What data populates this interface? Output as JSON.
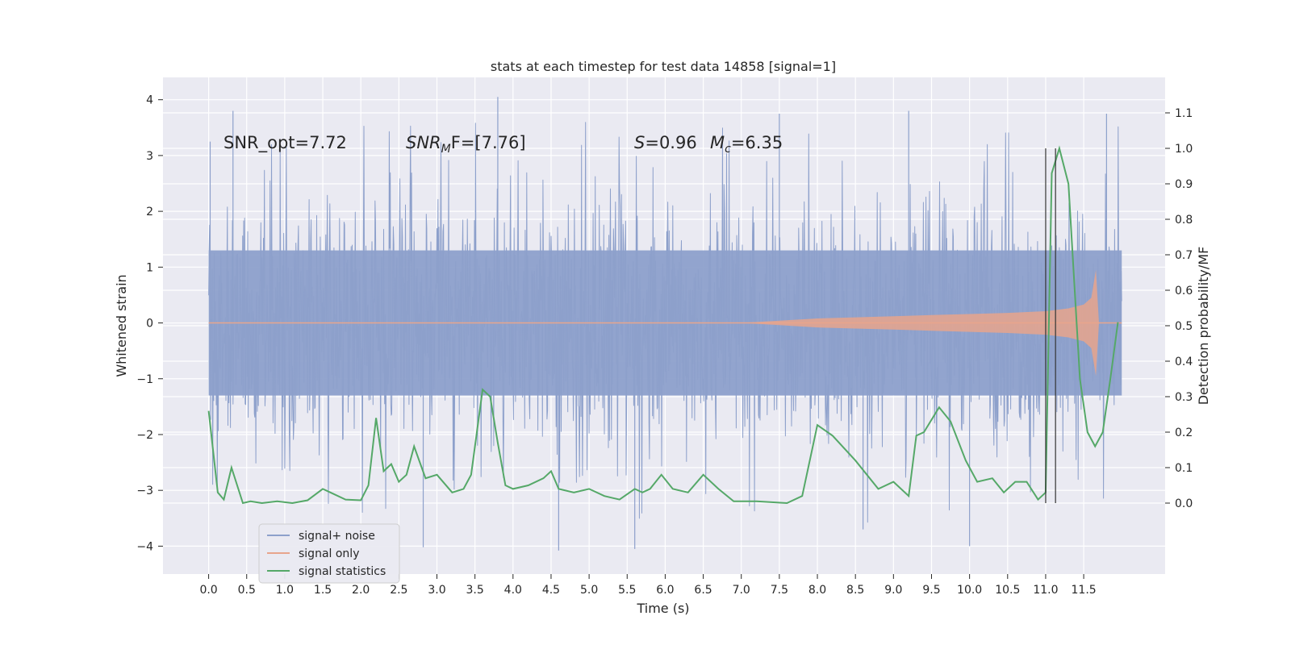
{
  "chart_data": {
    "type": "line",
    "title": "stats at each timestep for test data 14858 [signal=1]",
    "xlabel": "Time (s)",
    "ylabel_left": "Whitened strain",
    "ylabel_right": "Detection probability/MF",
    "xlim": [
      -0.6,
      12.57
    ],
    "ylim_left": [
      -4.5,
      4.4
    ],
    "ylim_right": [
      -0.2,
      1.2
    ],
    "grid": true,
    "x_ticks": [
      0.0,
      0.5,
      1.0,
      1.5,
      2.0,
      2.5,
      3.0,
      3.5,
      4.0,
      4.5,
      5.0,
      5.5,
      6.0,
      6.5,
      7.0,
      7.5,
      8.0,
      8.5,
      9.0,
      9.5,
      10.0,
      10.5,
      11.0,
      11.5
    ],
    "x_tick_labels": [
      "0.0",
      "0.5",
      "1.0",
      "1.5",
      "2.0",
      "2.5",
      "3.0",
      "3.5",
      "4.0",
      "4.5",
      "5.0",
      "5.5",
      "6.0",
      "6.5",
      "7.0",
      "7.5",
      "8.0",
      "8.5",
      "9.0",
      "9.5",
      "10.0",
      "10.5",
      "11.0",
      "11.5"
    ],
    "y_left_ticks": [
      -4,
      -3,
      -2,
      -1,
      0,
      1,
      2,
      3,
      4
    ],
    "y_left_tick_labels": [
      "−4",
      "−3",
      "−2",
      "−1",
      "0",
      "1",
      "2",
      "3",
      "4"
    ],
    "y_right_ticks": [
      0.0,
      0.1,
      0.2,
      0.3,
      0.4,
      0.5,
      0.6,
      0.7,
      0.8,
      0.9,
      1.0,
      1.1
    ],
    "y_right_tick_labels": [
      "0.0",
      "0.1",
      "0.2",
      "0.3",
      "0.4",
      "0.5",
      "0.6",
      "0.7",
      "0.8",
      "0.9",
      "1.0",
      "1.1"
    ],
    "annotations": {
      "snr_opt": "SNR_opt=7.72",
      "snr_mf_main": "SNR",
      "snr_mf_sub": "M",
      "snr_mf_rest": "F=[7.76]",
      "s_main": "S",
      "s_rest": "=0.96",
      "mc_main": "M",
      "mc_sub": "c",
      "mc_rest": "=6.35"
    },
    "vertical_lines_x": [
      11.0,
      11.13
    ],
    "legend": {
      "placement": "lower-left",
      "entries": [
        {
          "label": "signal+ noise",
          "color": "#8da0cb"
        },
        {
          "label": "signal only",
          "color": "#e8a58c"
        },
        {
          "label": "signal statistics",
          "color": "#55a868"
        }
      ]
    },
    "series": [
      {
        "name": "signal+ noise",
        "axis": "left",
        "color": "#8da0cb",
        "x_range": [
          0.0,
          12.0
        ],
        "envelope_upper": 1.3,
        "envelope_lower": -1.3,
        "max": 4.05,
        "min": -4.08,
        "spikes": [
          {
            "x": 0.02,
            "y": 3.25
          },
          {
            "x": 0.32,
            "y": 3.8
          },
          {
            "x": 3.8,
            "y": 4.05
          },
          {
            "x": 2.82,
            "y": -4.02
          },
          {
            "x": 4.6,
            "y": -4.08
          },
          {
            "x": 5.6,
            "y": -4.05
          },
          {
            "x": 10.0,
            "y": -4.0
          },
          {
            "x": 8.6,
            "y": -3.7
          },
          {
            "x": 9.2,
            "y": 3.8
          },
          {
            "x": 7.5,
            "y": 3.75
          },
          {
            "x": 11.8,
            "y": 3.75
          }
        ]
      },
      {
        "name": "signal only",
        "axis": "left",
        "color": "#e8a58c",
        "x": [
          0.0,
          7.0,
          7.5,
          8.0,
          8.5,
          9.0,
          9.5,
          10.0,
          10.5,
          11.0,
          11.3,
          11.5,
          11.6,
          11.66,
          11.7,
          12.0
        ],
        "amplitude": [
          0.0,
          0.0,
          0.04,
          0.08,
          0.1,
          0.12,
          0.14,
          0.16,
          0.18,
          0.21,
          0.26,
          0.33,
          0.45,
          0.95,
          0.0,
          0.0
        ]
      },
      {
        "name": "signal statistics",
        "axis": "right",
        "color": "#55a868",
        "x": [
          0.0,
          0.12,
          0.2,
          0.3,
          0.45,
          0.55,
          0.7,
          0.9,
          1.1,
          1.3,
          1.5,
          1.6,
          1.8,
          2.0,
          2.1,
          2.2,
          2.3,
          2.4,
          2.5,
          2.6,
          2.7,
          2.85,
          3.0,
          3.2,
          3.35,
          3.45,
          3.6,
          3.7,
          3.8,
          3.9,
          4.0,
          4.2,
          4.4,
          4.5,
          4.6,
          4.8,
          5.0,
          5.2,
          5.4,
          5.6,
          5.7,
          5.8,
          5.95,
          6.1,
          6.3,
          6.5,
          6.7,
          6.9,
          7.2,
          7.6,
          7.8,
          8.0,
          8.2,
          8.5,
          8.8,
          9.0,
          9.2,
          9.3,
          9.4,
          9.6,
          9.75,
          9.95,
          10.1,
          10.3,
          10.45,
          10.6,
          10.75,
          10.9,
          11.0,
          11.08,
          11.18,
          11.3,
          11.45,
          11.55,
          11.65,
          11.75,
          11.85,
          11.95
        ],
        "y": [
          0.26,
          0.03,
          0.01,
          0.1,
          0.0,
          0.005,
          0.0,
          0.005,
          0.0,
          0.008,
          0.04,
          0.03,
          0.01,
          0.008,
          0.05,
          0.24,
          0.09,
          0.11,
          0.06,
          0.08,
          0.16,
          0.07,
          0.08,
          0.03,
          0.04,
          0.08,
          0.32,
          0.3,
          0.17,
          0.05,
          0.04,
          0.05,
          0.07,
          0.09,
          0.04,
          0.03,
          0.04,
          0.02,
          0.01,
          0.04,
          0.03,
          0.04,
          0.08,
          0.04,
          0.03,
          0.08,
          0.04,
          0.005,
          0.005,
          0.0,
          0.02,
          0.22,
          0.19,
          0.12,
          0.04,
          0.06,
          0.02,
          0.19,
          0.2,
          0.27,
          0.23,
          0.12,
          0.06,
          0.07,
          0.03,
          0.06,
          0.06,
          0.01,
          0.03,
          0.93,
          1.0,
          0.9,
          0.35,
          0.2,
          0.16,
          0.2,
          0.35,
          0.51
        ]
      }
    ]
  }
}
